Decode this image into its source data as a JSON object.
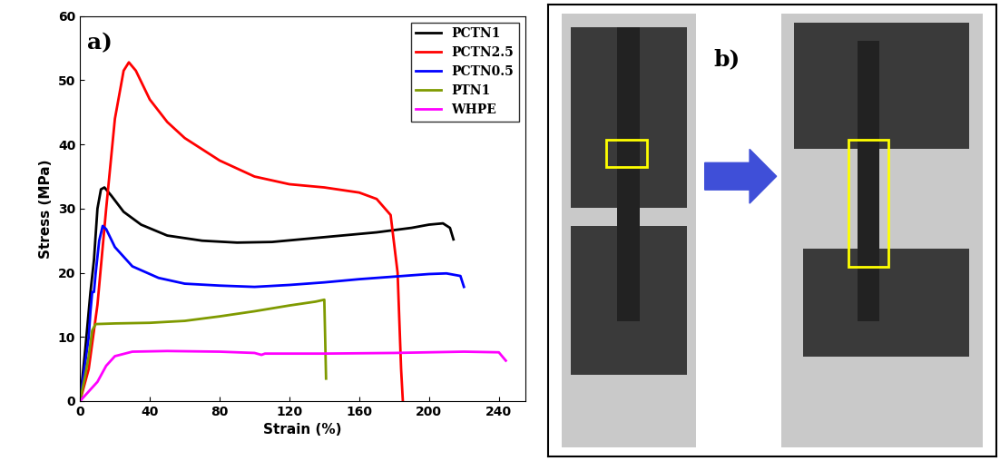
{
  "chart_data": {
    "type": "line",
    "annotations": [
      "a)"
    ],
    "x_label": "Strain (%)",
    "y_label": "Stress (MPa)",
    "xlim": [
      0,
      255
    ],
    "xticks": [
      0,
      40,
      80,
      120,
      160,
      200,
      240
    ],
    "ylim": [
      0,
      60
    ],
    "yticks": [
      0,
      10,
      20,
      30,
      40,
      50,
      60
    ],
    "legend": "upper right",
    "series": [
      {
        "name": "PCTN1",
        "color": "#000000",
        "x": [
          0,
          3,
          6,
          8,
          10,
          12,
          14,
          18,
          25,
          35,
          50,
          70,
          90,
          110,
          130,
          150,
          170,
          190,
          200,
          208,
          212,
          214
        ],
        "values": [
          0,
          8,
          17,
          22,
          30,
          33,
          33.3,
          32,
          29.5,
          27.5,
          25.8,
          25,
          24.7,
          24.8,
          25.3,
          25.8,
          26.3,
          27,
          27.5,
          27.7,
          27,
          25.2
        ]
      },
      {
        "name": "PCTN2.5",
        "color": "#ff0000",
        "x": [
          0,
          5,
          10,
          15,
          20,
          25,
          28,
          32,
          40,
          50,
          60,
          80,
          100,
          120,
          140,
          160,
          170,
          178,
          182,
          184,
          185
        ],
        "values": [
          0,
          5,
          15,
          30,
          44,
          51.5,
          52.8,
          51.5,
          47,
          43.5,
          41,
          37.5,
          35,
          33.8,
          33.3,
          32.5,
          31.5,
          29,
          20,
          5,
          0
        ]
      },
      {
        "name": "PCTN0.5",
        "color": "#0000ff",
        "x": [
          0,
          3,
          5,
          6,
          7,
          8,
          9,
          11,
          13,
          15,
          20,
          30,
          45,
          60,
          80,
          100,
          120,
          140,
          160,
          180,
          200,
          210,
          218,
          220
        ],
        "values": [
          0,
          6,
          10,
          14,
          17,
          17,
          20,
          25,
          27.3,
          26.8,
          24,
          21,
          19.2,
          18.3,
          18,
          17.8,
          18.1,
          18.5,
          19,
          19.4,
          19.8,
          19.9,
          19.5,
          17.8
        ]
      },
      {
        "name": "PTN1",
        "color": "#7f9a00",
        "x": [
          0,
          3,
          5,
          7,
          9,
          20,
          40,
          60,
          80,
          100,
          120,
          135,
          140,
          141
        ],
        "values": [
          0,
          4,
          7,
          11,
          12,
          12.1,
          12.2,
          12.5,
          13.2,
          14,
          14.9,
          15.5,
          15.8,
          3.5
        ]
      },
      {
        "name": "WHPE",
        "color": "#ff00ff",
        "x": [
          0,
          5,
          10,
          15,
          20,
          30,
          50,
          80,
          100,
          104,
          106,
          140,
          180,
          220,
          240,
          244
        ],
        "values": [
          0,
          1.5,
          3,
          5.5,
          7,
          7.7,
          7.8,
          7.7,
          7.5,
          7.2,
          7.4,
          7.4,
          7.5,
          7.7,
          7.6,
          6.3
        ]
      }
    ]
  },
  "photo_panel": {
    "label": "b)"
  }
}
